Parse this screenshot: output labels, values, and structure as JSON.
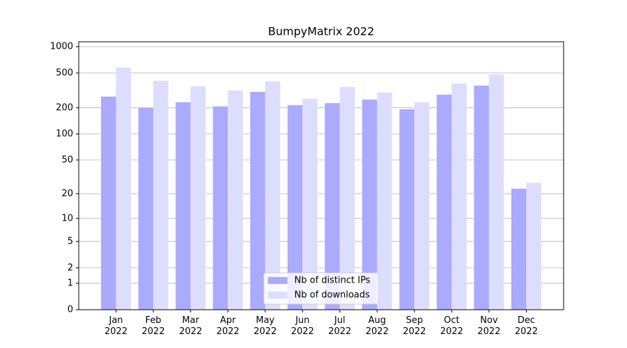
{
  "chart_data": {
    "type": "bar",
    "title": "BumpyMatrix 2022",
    "categories": [
      "Jan\n2022",
      "Feb\n2022",
      "Mar\n2022",
      "Apr\n2022",
      "May\n2022",
      "Jun\n2022",
      "Jul\n2022",
      "Aug\n2022",
      "Sep\n2022",
      "Oct\n2022",
      "Nov\n2022",
      "Dec\n2022"
    ],
    "series": [
      {
        "name": "Nb of distinct IPs",
        "color": "#aaaaff",
        "values": [
          268,
          199,
          231,
          207,
          304,
          214,
          226,
          248,
          192,
          282,
          358,
          23
        ]
      },
      {
        "name": "Nb of downloads",
        "color": "#ddddff",
        "values": [
          577,
          407,
          352,
          315,
          400,
          253,
          346,
          298,
          231,
          378,
          481,
          27
        ]
      }
    ],
    "scale": "log1p",
    "ylim": [
      0,
      1136
    ],
    "yticks": [
      0,
      1,
      2,
      5,
      10,
      20,
      50,
      100,
      200,
      500,
      1000
    ],
    "grid": true,
    "legend": "lower center"
  }
}
